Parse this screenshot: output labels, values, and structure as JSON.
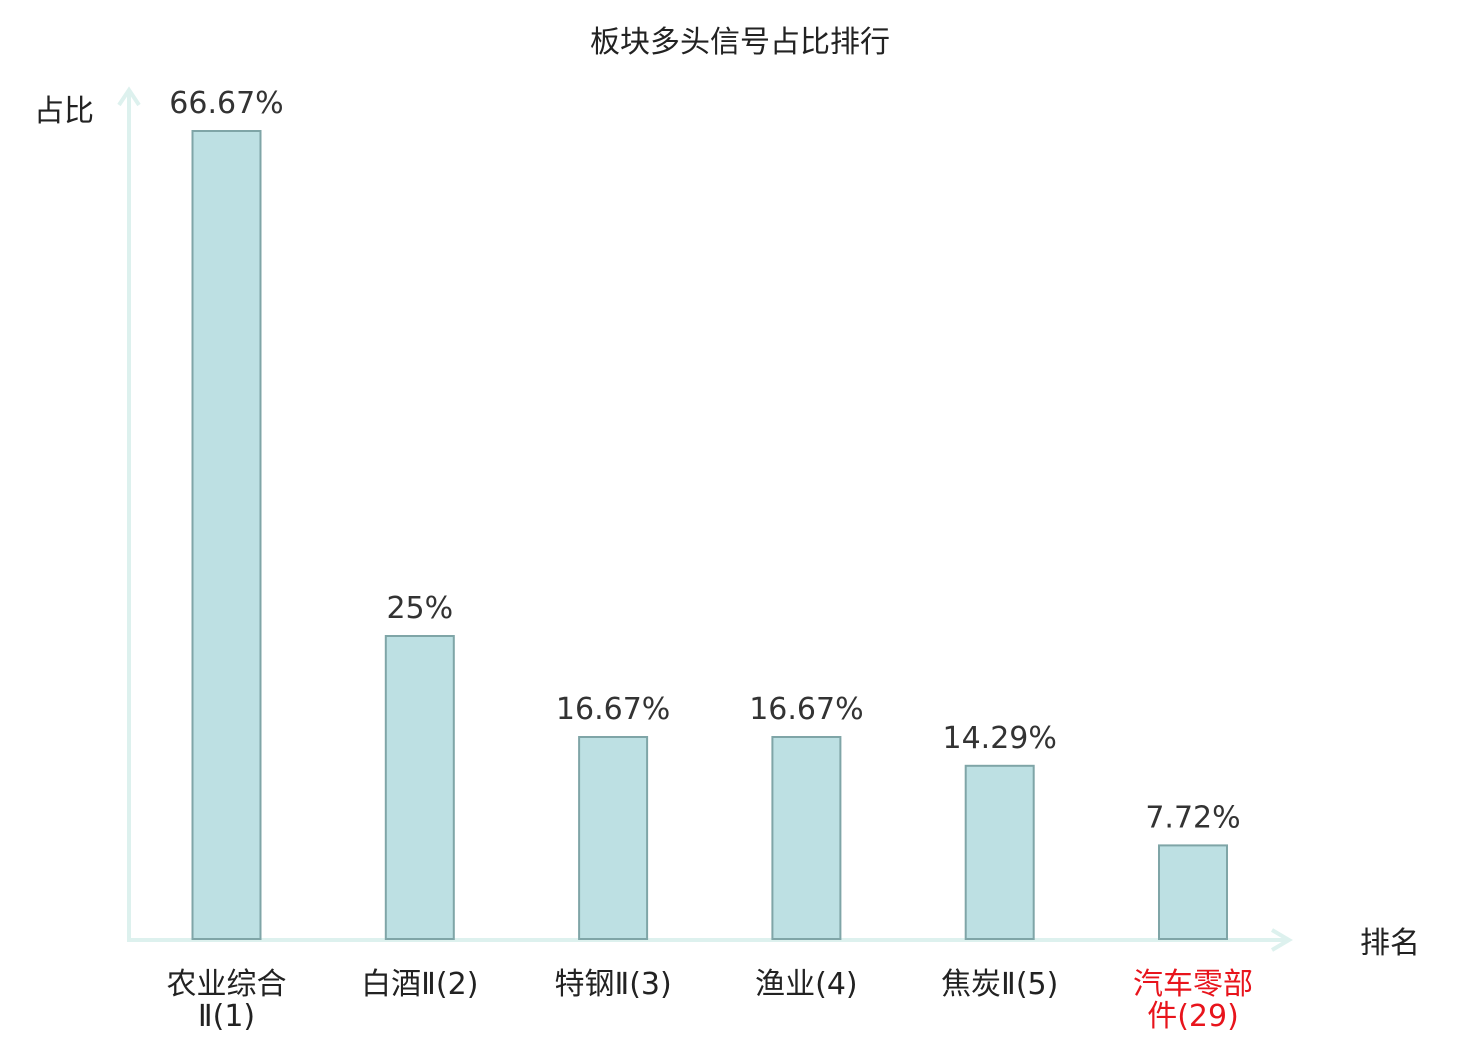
{
  "chart_data": {
    "type": "bar",
    "title": "板块多头信号占比排行",
    "ylabel": "占比",
    "xlabel": "排名",
    "ylim": [
      0,
      70
    ],
    "grid": false,
    "categories": [
      [
        "农业综合",
        "Ⅱ(1)"
      ],
      [
        "白酒Ⅱ(2)"
      ],
      [
        "特钢Ⅱ(3)"
      ],
      [
        "渔业(4)"
      ],
      [
        "焦炭Ⅱ(5)"
      ],
      [
        "汽车零部",
        "件(29)"
      ]
    ],
    "values": [
      66.67,
      25,
      16.67,
      16.67,
      14.29,
      7.72
    ],
    "value_labels": [
      "66.67%",
      "25%",
      "16.67%",
      "16.67%",
      "14.29%",
      "7.72%"
    ],
    "highlight_index": 5
  },
  "colors": {
    "bar_fill": "#bde0e3",
    "bar_stroke": "#7fa5a7",
    "axis": "#ddf1ee",
    "text": "#222222",
    "value_text": "#333333",
    "highlight_text": "#e8141c"
  }
}
